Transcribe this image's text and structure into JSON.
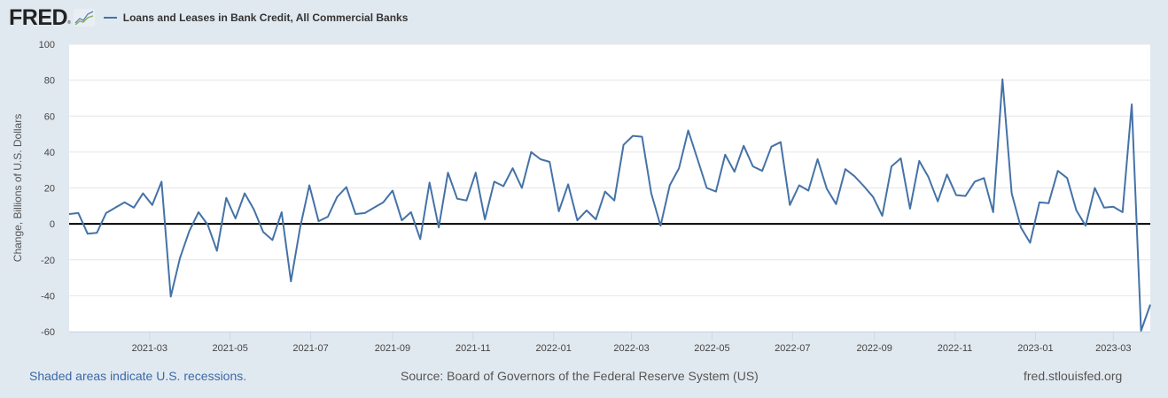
{
  "header": {
    "logo_text": "FRED",
    "logo_reg": "®",
    "logo_icon": "fred-chart-icon",
    "series_title": "Loans and Leases in Bank Credit, All Commercial Banks"
  },
  "footer": {
    "recessions_note": "Shaded areas indicate U.S. recessions.",
    "source": "Source: Board of Governors of the Federal Reserve System (US)",
    "site": "fred.stlouisfed.org"
  },
  "colors": {
    "series": "#4572a7",
    "background": "#e1e9f0",
    "plot_bg": "#ffffff",
    "grid": "#e6e6e6",
    "zero_line": "#000000"
  },
  "chart_data": {
    "type": "line",
    "title": "Loans and Leases in Bank Credit, All Commercial Banks",
    "xlabel": "",
    "ylabel": "Change, Billions of U.S. Dollars",
    "ylim": [
      -60,
      100
    ],
    "yticks": [
      100,
      80,
      60,
      40,
      20,
      0,
      -20,
      -40,
      -60
    ],
    "xlim": [
      "2020-12-30",
      "2023-03-29"
    ],
    "xticks": [
      {
        "date": "2021-03-01",
        "label": "2021-03"
      },
      {
        "date": "2021-05-01",
        "label": "2021-05"
      },
      {
        "date": "2021-07-01",
        "label": "2021-07"
      },
      {
        "date": "2021-09-01",
        "label": "2021-09"
      },
      {
        "date": "2021-11-01",
        "label": "2021-11"
      },
      {
        "date": "2022-01-01",
        "label": "2022-01"
      },
      {
        "date": "2022-03-01",
        "label": "2022-03"
      },
      {
        "date": "2022-05-01",
        "label": "2022-05"
      },
      {
        "date": "2022-07-01",
        "label": "2022-07"
      },
      {
        "date": "2022-09-01",
        "label": "2022-09"
      },
      {
        "date": "2022-11-01",
        "label": "2022-11"
      },
      {
        "date": "2023-01-01",
        "label": "2023-01"
      },
      {
        "date": "2023-03-01",
        "label": "2023-03"
      }
    ],
    "grid": true,
    "legend": "top-left",
    "frequency": "weekly",
    "start_date": "2020-12-30",
    "series": [
      {
        "name": "Loans and Leases in Bank Credit, All Commercial Banks",
        "values": [
          5.5,
          6,
          -5.5,
          -5,
          6,
          9,
          12,
          9,
          17,
          10.5,
          23.5,
          -40.5,
          -19,
          -4,
          6.5,
          -0.5,
          -15,
          14.5,
          3,
          17,
          8,
          -4.5,
          -9,
          6.5,
          -32,
          -2,
          21.5,
          1.5,
          4,
          15,
          20.5,
          5.5,
          6,
          9,
          12,
          18.5,
          2,
          6.5,
          -8.5,
          23,
          -2,
          28.5,
          14,
          13,
          28.5,
          2.5,
          23.5,
          21,
          31,
          20,
          40,
          36,
          34.5,
          7,
          22,
          2,
          7.5,
          2.5,
          18,
          13,
          44,
          49,
          48.5,
          17,
          -1,
          21.5,
          31,
          52,
          36,
          20,
          18,
          38.5,
          29,
          43.5,
          32,
          29.5,
          43,
          45.5,
          10.5,
          21.5,
          18.5,
          36,
          19.5,
          11,
          30.5,
          26.5,
          21,
          15,
          4.5,
          32,
          36.5,
          8.5,
          35,
          26,
          12.5,
          27.5,
          16,
          15.5,
          23.5,
          25.5,
          6.5,
          80.5,
          17,
          -2,
          -10.5,
          12,
          11.5,
          29.5,
          25.5,
          7.5,
          -1,
          20,
          9,
          9.5,
          6.5,
          66.5,
          -59.5,
          -45
        ]
      }
    ]
  }
}
